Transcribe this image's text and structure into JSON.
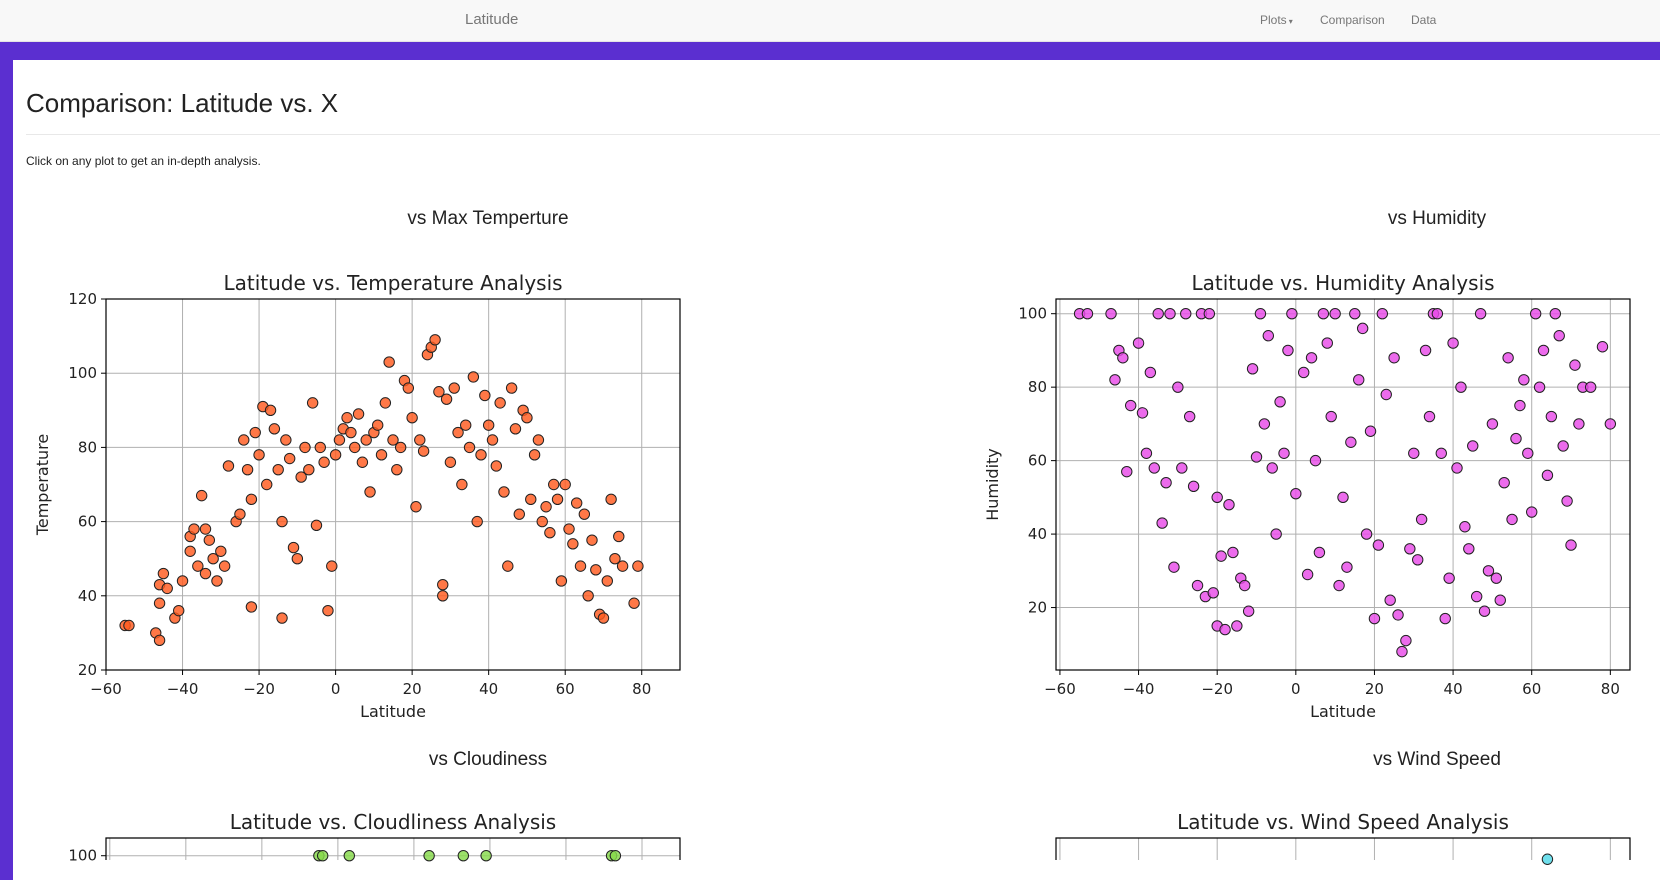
{
  "navbar": {
    "brand": "Latitude",
    "links": [
      {
        "label": "Plots",
        "dropdown": true
      },
      {
        "label": "Comparison"
      },
      {
        "label": "Data"
      }
    ]
  },
  "page": {
    "title": "Comparison: Latitude vs. X",
    "instruction": "Click on any plot to get an in-depth analysis."
  },
  "sections": [
    {
      "heading": "vs Max Temperture"
    },
    {
      "heading": "vs Humidity"
    },
    {
      "heading": "vs Cloudiness"
    },
    {
      "heading": "vs Wind Speed"
    }
  ],
  "chart_data": [
    {
      "type": "scatter",
      "title": "Latitude vs. Temperature Analysis",
      "xlabel": "Latitude",
      "ylabel": "Temperature",
      "xlim": [
        -60,
        90
      ],
      "ylim": [
        20,
        120
      ],
      "xticks": [
        -60,
        -40,
        -20,
        0,
        20,
        40,
        60,
        80
      ],
      "yticks": [
        20,
        40,
        60,
        80,
        100,
        120
      ],
      "grid": true,
      "color": "#ff5a1f",
      "edge_color": "#222222",
      "points": [
        [
          -55,
          32
        ],
        [
          -54,
          32
        ],
        [
          -47,
          30
        ],
        [
          -46,
          28
        ],
        [
          -46,
          38
        ],
        [
          -46,
          43
        ],
        [
          -45,
          46
        ],
        [
          -44,
          42
        ],
        [
          -42,
          34
        ],
        [
          -41,
          36
        ],
        [
          -40,
          44
        ],
        [
          -38,
          56
        ],
        [
          -38,
          52
        ],
        [
          -37,
          58
        ],
        [
          -36,
          48
        ],
        [
          -35,
          67
        ],
        [
          -34,
          46
        ],
        [
          -34,
          58
        ],
        [
          -33,
          55
        ],
        [
          -32,
          50
        ],
        [
          -31,
          44
        ],
        [
          -30,
          52
        ],
        [
          -29,
          48
        ],
        [
          -28,
          75
        ],
        [
          -26,
          60
        ],
        [
          -25,
          62
        ],
        [
          -24,
          82
        ],
        [
          -23,
          74
        ],
        [
          -22,
          37
        ],
        [
          -22,
          66
        ],
        [
          -21,
          84
        ],
        [
          -20,
          78
        ],
        [
          -19,
          91
        ],
        [
          -18,
          70
        ],
        [
          -17,
          90
        ],
        [
          -16,
          85
        ],
        [
          -15,
          74
        ],
        [
          -14,
          34
        ],
        [
          -14,
          60
        ],
        [
          -13,
          82
        ],
        [
          -12,
          77
        ],
        [
          -11,
          53
        ],
        [
          -10,
          50
        ],
        [
          -9,
          72
        ],
        [
          -8,
          80
        ],
        [
          -7,
          74
        ],
        [
          -6,
          92
        ],
        [
          -5,
          59
        ],
        [
          -4,
          80
        ],
        [
          -3,
          76
        ],
        [
          -2,
          36
        ],
        [
          -1,
          48
        ],
        [
          0,
          78
        ],
        [
          1,
          82
        ],
        [
          2,
          85
        ],
        [
          3,
          88
        ],
        [
          4,
          84
        ],
        [
          5,
          80
        ],
        [
          6,
          89
        ],
        [
          7,
          76
        ],
        [
          8,
          82
        ],
        [
          9,
          68
        ],
        [
          10,
          84
        ],
        [
          11,
          86
        ],
        [
          12,
          78
        ],
        [
          13,
          92
        ],
        [
          14,
          103
        ],
        [
          15,
          82
        ],
        [
          16,
          74
        ],
        [
          17,
          80
        ],
        [
          18,
          98
        ],
        [
          19,
          96
        ],
        [
          20,
          88
        ],
        [
          21,
          64
        ],
        [
          22,
          82
        ],
        [
          23,
          79
        ],
        [
          24,
          105
        ],
        [
          25,
          107
        ],
        [
          26,
          109
        ],
        [
          27,
          95
        ],
        [
          28,
          40
        ],
        [
          28,
          43
        ],
        [
          29,
          93
        ],
        [
          30,
          76
        ],
        [
          31,
          96
        ],
        [
          32,
          84
        ],
        [
          33,
          70
        ],
        [
          34,
          86
        ],
        [
          35,
          80
        ],
        [
          36,
          99
        ],
        [
          37,
          60
        ],
        [
          38,
          78
        ],
        [
          39,
          94
        ],
        [
          40,
          86
        ],
        [
          41,
          82
        ],
        [
          42,
          75
        ],
        [
          43,
          92
        ],
        [
          44,
          68
        ],
        [
          45,
          48
        ],
        [
          46,
          96
        ],
        [
          47,
          85
        ],
        [
          48,
          62
        ],
        [
          49,
          90
        ],
        [
          50,
          88
        ],
        [
          51,
          66
        ],
        [
          52,
          78
        ],
        [
          53,
          82
        ],
        [
          54,
          60
        ],
        [
          55,
          64
        ],
        [
          56,
          57
        ],
        [
          57,
          70
        ],
        [
          58,
          66
        ],
        [
          59,
          44
        ],
        [
          60,
          70
        ],
        [
          61,
          58
        ],
        [
          62,
          54
        ],
        [
          63,
          65
        ],
        [
          64,
          48
        ],
        [
          65,
          62
        ],
        [
          66,
          40
        ],
        [
          67,
          55
        ],
        [
          68,
          47
        ],
        [
          69,
          35
        ],
        [
          70,
          34
        ],
        [
          71,
          44
        ],
        [
          72,
          66
        ],
        [
          73,
          50
        ],
        [
          74,
          56
        ],
        [
          75,
          48
        ],
        [
          78,
          38
        ],
        [
          79,
          48
        ]
      ]
    },
    {
      "type": "scatter",
      "title": "Latitude vs. Humidity Analysis",
      "xlabel": "Latitude",
      "ylabel": "Humidity",
      "xlim": [
        -61,
        85
      ],
      "ylim": [
        3,
        104
      ],
      "xticks": [
        -60,
        -40,
        -20,
        0,
        20,
        40,
        60,
        80
      ],
      "yticks": [
        20,
        40,
        60,
        80,
        100
      ],
      "grid": true,
      "color": "#e84ae8",
      "edge_color": "#222222",
      "points": [
        [
          -55,
          100
        ],
        [
          -53,
          100
        ],
        [
          -47,
          100
        ],
        [
          -46,
          82
        ],
        [
          -45,
          90
        ],
        [
          -44,
          88
        ],
        [
          -43,
          57
        ],
        [
          -42,
          75
        ],
        [
          -40,
          92
        ],
        [
          -39,
          73
        ],
        [
          -38,
          62
        ],
        [
          -37,
          84
        ],
        [
          -36,
          58
        ],
        [
          -35,
          100
        ],
        [
          -34,
          43
        ],
        [
          -33,
          54
        ],
        [
          -32,
          100
        ],
        [
          -31,
          31
        ],
        [
          -30,
          80
        ],
        [
          -29,
          58
        ],
        [
          -28,
          100
        ],
        [
          -27,
          72
        ],
        [
          -26,
          53
        ],
        [
          -25,
          26
        ],
        [
          -24,
          100
        ],
        [
          -23,
          23
        ],
        [
          -22,
          100
        ],
        [
          -21,
          24
        ],
        [
          -20,
          15
        ],
        [
          -20,
          50
        ],
        [
          -19,
          34
        ],
        [
          -18,
          14
        ],
        [
          -17,
          48
        ],
        [
          -16,
          35
        ],
        [
          -15,
          15
        ],
        [
          -14,
          28
        ],
        [
          -13,
          26
        ],
        [
          -12,
          19
        ],
        [
          -11,
          85
        ],
        [
          -10,
          61
        ],
        [
          -9,
          100
        ],
        [
          -8,
          70
        ],
        [
          -7,
          94
        ],
        [
          -6,
          58
        ],
        [
          -5,
          40
        ],
        [
          -4,
          76
        ],
        [
          -3,
          62
        ],
        [
          -2,
          90
        ],
        [
          -1,
          100
        ],
        [
          0,
          51
        ],
        [
          2,
          84
        ],
        [
          3,
          29
        ],
        [
          4,
          88
        ],
        [
          5,
          60
        ],
        [
          6,
          35
        ],
        [
          7,
          100
        ],
        [
          8,
          92
        ],
        [
          9,
          72
        ],
        [
          10,
          100
        ],
        [
          11,
          26
        ],
        [
          12,
          50
        ],
        [
          13,
          31
        ],
        [
          14,
          65
        ],
        [
          15,
          100
        ],
        [
          16,
          82
        ],
        [
          17,
          96
        ],
        [
          18,
          40
        ],
        [
          19,
          68
        ],
        [
          20,
          17
        ],
        [
          21,
          37
        ],
        [
          22,
          100
        ],
        [
          23,
          78
        ],
        [
          24,
          22
        ],
        [
          25,
          88
        ],
        [
          26,
          18
        ],
        [
          27,
          8
        ],
        [
          28,
          11
        ],
        [
          29,
          36
        ],
        [
          30,
          62
        ],
        [
          31,
          33
        ],
        [
          32,
          44
        ],
        [
          33,
          90
        ],
        [
          34,
          72
        ],
        [
          35,
          100
        ],
        [
          36,
          100
        ],
        [
          37,
          62
        ],
        [
          38,
          17
        ],
        [
          39,
          28
        ],
        [
          40,
          92
        ],
        [
          41,
          58
        ],
        [
          42,
          80
        ],
        [
          43,
          42
        ],
        [
          44,
          36
        ],
        [
          45,
          64
        ],
        [
          46,
          23
        ],
        [
          47,
          100
        ],
        [
          48,
          19
        ],
        [
          49,
          30
        ],
        [
          50,
          70
        ],
        [
          51,
          28
        ],
        [
          52,
          22
        ],
        [
          53,
          54
        ],
        [
          54,
          88
        ],
        [
          55,
          44
        ],
        [
          56,
          66
        ],
        [
          57,
          75
        ],
        [
          58,
          82
        ],
        [
          59,
          62
        ],
        [
          60,
          46
        ],
        [
          61,
          100
        ],
        [
          62,
          80
        ],
        [
          63,
          90
        ],
        [
          64,
          56
        ],
        [
          65,
          72
        ],
        [
          66,
          100
        ],
        [
          67,
          94
        ],
        [
          68,
          64
        ],
        [
          69,
          49
        ],
        [
          70,
          37
        ],
        [
          71,
          86
        ],
        [
          72,
          70
        ],
        [
          73,
          80
        ],
        [
          75,
          80
        ],
        [
          78,
          91
        ],
        [
          80,
          70
        ]
      ]
    },
    {
      "type": "scatter",
      "title": "Latitude vs. Cloudliness Analysis",
      "xlabel": "",
      "ylabel": "",
      "xlim": [
        -61,
        90
      ],
      "ylim": [
        0,
        105
      ],
      "yticks": [
        100
      ],
      "grid": true,
      "color": "#86d94a",
      "edge_color": "#222222",
      "points": [
        [
          -5,
          100
        ],
        [
          -4,
          100
        ],
        [
          3,
          100
        ],
        [
          24,
          100
        ],
        [
          33,
          100
        ],
        [
          39,
          100
        ],
        [
          72,
          100
        ],
        [
          73,
          100
        ]
      ]
    },
    {
      "type": "scatter",
      "title": "Latitude vs. Wind Speed Analysis",
      "xlabel": "",
      "ylabel": "",
      "xlim": [
        -61,
        85
      ],
      "ylim": [
        0,
        35
      ],
      "grid": true,
      "color": "#4fd8e8",
      "edge_color": "#222222",
      "points": [
        [
          64,
          33
        ]
      ]
    }
  ]
}
